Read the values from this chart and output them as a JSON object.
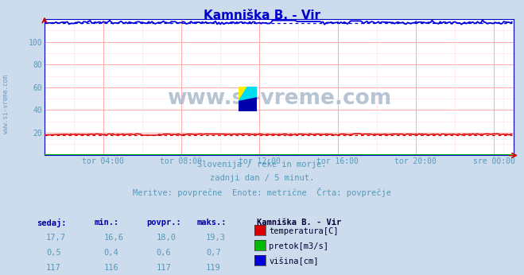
{
  "title": "Kamniška B. - Vir",
  "title_color": "#0000cc",
  "bg_color": "#ccdcec",
  "plot_bg_color": "#ffffff",
  "grid_color_major": "#ffaaaa",
  "grid_color_minor": "#ffdddd",
  "watermark_text": "www.si-vreme.com",
  "watermark_color": "#aabbcc",
  "tick_color": "#5599bb",
  "ylabel_values": [
    20,
    40,
    60,
    80,
    100
  ],
  "ymin": 0,
  "ymax": 120,
  "xmin": 0,
  "xmax": 288,
  "xtick_labels": [
    "tor 04:00",
    "tor 08:00",
    "tor 12:00",
    "tor 16:00",
    "tor 20:00",
    "sre 00:00"
  ],
  "xtick_norm": [
    0.125,
    0.291,
    0.458,
    0.625,
    0.791,
    0.958
  ],
  "subtitle_lines": [
    "Slovenija / reke in morje.",
    "zadnji dan / 5 minut.",
    "Meritve: povprečne  Enote: metrične  Črta: povprečje"
  ],
  "subtitle_color": "#5599bb",
  "legend_title": "Kamniška B. - Vir",
  "legend_color": "#000033",
  "legend_items": [
    {
      "label": "temperatura[C]",
      "color": "#dd0000"
    },
    {
      "label": "pretok[m3/s]",
      "color": "#00bb00"
    },
    {
      "label": "višina[cm]",
      "color": "#0000dd"
    }
  ],
  "table_headers": [
    "sedaj:",
    "min.:",
    "povpr.:",
    "maks.:"
  ],
  "table_data": [
    [
      "17,7",
      "16,6",
      "18,0",
      "19,3"
    ],
    [
      "0,5",
      "0,4",
      "0,6",
      "0,7"
    ],
    [
      "117",
      "116",
      "117",
      "119"
    ]
  ],
  "table_color": "#5599bb",
  "table_header_color": "#0000aa",
  "temp_avg": 18.0,
  "temp_min": 16.6,
  "temp_max": 19.3,
  "flow_avg": 0.6,
  "flow_min": 0.4,
  "flow_max": 0.7,
  "height_avg": 117,
  "height_min": 116,
  "height_max": 119,
  "line_temp_color": "#dd0000",
  "line_flow_color": "#00bb00",
  "line_height_color": "#0000dd",
  "arrow_color": "#cc0000",
  "left_label_color": "#7799bb",
  "axis_line_color": "#0000cc"
}
